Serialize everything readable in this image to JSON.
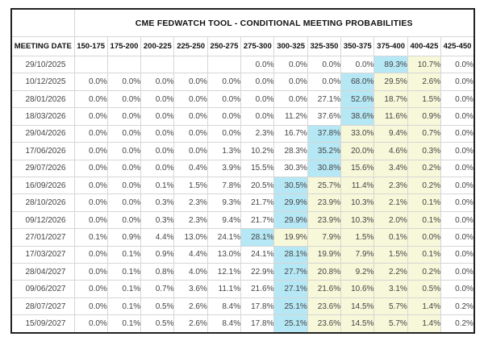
{
  "chart_data": {
    "type": "table",
    "title": "CME FEDWATCH TOOL - CONDITIONAL MEETING PROBABILITIES",
    "row_header_label": "MEETING DATE",
    "rate_range_columns": [
      "150-175",
      "175-200",
      "200-225",
      "225-250",
      "250-275",
      "275-300",
      "300-325",
      "325-350",
      "350-375",
      "375-400",
      "400-425",
      "425-450"
    ],
    "colors": {
      "blue_highlight": "#b5e7f4",
      "yellow_highlight": "#f7f7d9",
      "cell_background": "#ffffff"
    },
    "rows": [
      {
        "date": "29/10/2025",
        "values": [
          "",
          "",
          "",
          "",
          "",
          "0.0%",
          "0.0%",
          "0.0%",
          "0.0%",
          "89.3%",
          "10.7%",
          "0.0%"
        ],
        "blue_col": 9,
        "yellow_cols": [
          10
        ]
      },
      {
        "date": "10/12/2025",
        "values": [
          "0.0%",
          "0.0%",
          "0.0%",
          "0.0%",
          "0.0%",
          "0.0%",
          "0.0%",
          "0.0%",
          "68.0%",
          "29.5%",
          "2.6%",
          "0.0%"
        ],
        "blue_col": 8,
        "yellow_cols": [
          9,
          10
        ]
      },
      {
        "date": "28/01/2026",
        "values": [
          "0.0%",
          "0.0%",
          "0.0%",
          "0.0%",
          "0.0%",
          "0.0%",
          "0.0%",
          "27.1%",
          "52.6%",
          "18.7%",
          "1.5%",
          "0.0%"
        ],
        "blue_col": 8,
        "yellow_cols": [
          9,
          10
        ]
      },
      {
        "date": "18/03/2026",
        "values": [
          "0.0%",
          "0.0%",
          "0.0%",
          "0.0%",
          "0.0%",
          "0.0%",
          "11.2%",
          "37.6%",
          "38.6%",
          "11.6%",
          "0.9%",
          "0.0%"
        ],
        "blue_col": 8,
        "yellow_cols": [
          9,
          10
        ]
      },
      {
        "date": "29/04/2026",
        "values": [
          "0.0%",
          "0.0%",
          "0.0%",
          "0.0%",
          "0.0%",
          "2.3%",
          "16.7%",
          "37.8%",
          "33.0%",
          "9.4%",
          "0.7%",
          "0.0%"
        ],
        "blue_col": 7,
        "yellow_cols": [
          8,
          9,
          10
        ]
      },
      {
        "date": "17/06/2026",
        "values": [
          "0.0%",
          "0.0%",
          "0.0%",
          "0.0%",
          "1.3%",
          "10.2%",
          "28.3%",
          "35.2%",
          "20.0%",
          "4.6%",
          "0.3%",
          "0.0%"
        ],
        "blue_col": 7,
        "yellow_cols": [
          8,
          9,
          10
        ]
      },
      {
        "date": "29/07/2026",
        "values": [
          "0.0%",
          "0.0%",
          "0.0%",
          "0.4%",
          "3.9%",
          "15.5%",
          "30.3%",
          "30.8%",
          "15.6%",
          "3.4%",
          "0.2%",
          "0.0%"
        ],
        "blue_col": 7,
        "yellow_cols": [
          8,
          9,
          10
        ]
      },
      {
        "date": "16/09/2026",
        "values": [
          "0.0%",
          "0.0%",
          "0.1%",
          "1.5%",
          "7.8%",
          "20.5%",
          "30.5%",
          "25.7%",
          "11.4%",
          "2.3%",
          "0.2%",
          "0.0%"
        ],
        "blue_col": 6,
        "yellow_cols": [
          7,
          8,
          9,
          10
        ]
      },
      {
        "date": "28/10/2026",
        "values": [
          "0.0%",
          "0.0%",
          "0.3%",
          "2.3%",
          "9.3%",
          "21.7%",
          "29.9%",
          "23.9%",
          "10.3%",
          "2.1%",
          "0.1%",
          "0.0%"
        ],
        "blue_col": 6,
        "yellow_cols": [
          7,
          8,
          9,
          10
        ]
      },
      {
        "date": "09/12/2026",
        "values": [
          "0.0%",
          "0.0%",
          "0.3%",
          "2.3%",
          "9.4%",
          "21.7%",
          "29.9%",
          "23.9%",
          "10.3%",
          "2.0%",
          "0.1%",
          "0.0%"
        ],
        "blue_col": 6,
        "yellow_cols": [
          7,
          8,
          9,
          10
        ]
      },
      {
        "date": "27/01/2027",
        "values": [
          "0.1%",
          "0.9%",
          "4.4%",
          "13.0%",
          "24.1%",
          "28.1%",
          "19.9%",
          "7.9%",
          "1.5%",
          "0.1%",
          "0.0%",
          "0.0%"
        ],
        "blue_col": 5,
        "yellow_cols": [
          6,
          7,
          8,
          9,
          10
        ]
      },
      {
        "date": "17/03/2027",
        "values": [
          "0.0%",
          "0.1%",
          "0.9%",
          "4.4%",
          "13.0%",
          "24.1%",
          "28.1%",
          "19.9%",
          "7.9%",
          "1.5%",
          "0.1%",
          "0.0%"
        ],
        "blue_col": 6,
        "yellow_cols": [
          7,
          8,
          9,
          10
        ]
      },
      {
        "date": "28/04/2027",
        "values": [
          "0.0%",
          "0.1%",
          "0.8%",
          "4.0%",
          "12.1%",
          "22.9%",
          "27.7%",
          "20.8%",
          "9.2%",
          "2.2%",
          "0.2%",
          "0.0%"
        ],
        "blue_col": 6,
        "yellow_cols": [
          7,
          8,
          9,
          10
        ]
      },
      {
        "date": "09/06/2027",
        "values": [
          "0.0%",
          "0.1%",
          "0.7%",
          "3.6%",
          "11.1%",
          "21.6%",
          "27.1%",
          "21.6%",
          "10.6%",
          "3.1%",
          "0.5%",
          "0.0%"
        ],
        "blue_col": 6,
        "yellow_cols": [
          7,
          8,
          9,
          10
        ]
      },
      {
        "date": "28/07/2027",
        "values": [
          "0.0%",
          "0.1%",
          "0.5%",
          "2.6%",
          "8.4%",
          "17.8%",
          "25.1%",
          "23.6%",
          "14.5%",
          "5.7%",
          "1.4%",
          "0.2%"
        ],
        "blue_col": 6,
        "yellow_cols": [
          7,
          8,
          9,
          10
        ]
      },
      {
        "date": "15/09/2027",
        "values": [
          "0.0%",
          "0.1%",
          "0.5%",
          "2.6%",
          "8.4%",
          "17.8%",
          "25.1%",
          "23.6%",
          "14.5%",
          "5.7%",
          "1.4%",
          "0.2%"
        ],
        "blue_col": 6,
        "yellow_cols": [
          7,
          8,
          9,
          10
        ]
      }
    ]
  }
}
